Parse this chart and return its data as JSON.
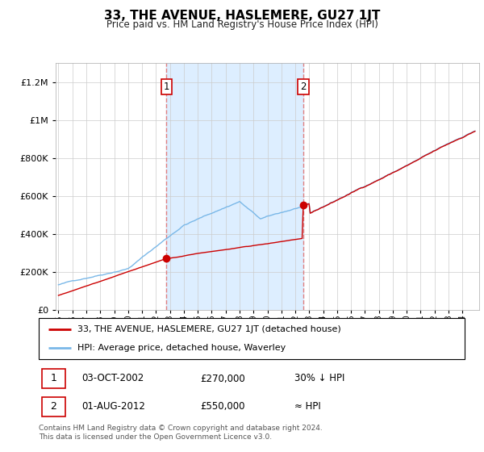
{
  "title": "33, THE AVENUE, HASLEMERE, GU27 1JT",
  "subtitle": "Price paid vs. HM Land Registry's House Price Index (HPI)",
  "ytick_values": [
    0,
    200000,
    400000,
    600000,
    800000,
    1000000,
    1200000
  ],
  "ylim": [
    0,
    1300000
  ],
  "xlim_start": 1994.8,
  "xlim_end": 2025.2,
  "hpi_color": "#7ab8e8",
  "price_color": "#cc0000",
  "shaded_color": "#ddeeff",
  "dashed_color": "#e08080",
  "t1_year": 2002.75,
  "t2_year": 2012.58,
  "t1_price": 270000,
  "t2_price": 550000,
  "legend_line1": "33, THE AVENUE, HASLEMERE, GU27 1JT (detached house)",
  "legend_line2": "HPI: Average price, detached house, Waverley",
  "table_row1": [
    "1",
    "03-OCT-2002",
    "£270,000",
    "30% ↓ HPI"
  ],
  "table_row2": [
    "2",
    "01-AUG-2012",
    "£550,000",
    "≈ HPI"
  ],
  "footer": "Contains HM Land Registry data © Crown copyright and database right 2024.\nThis data is licensed under the Open Government Licence v3.0.",
  "background_color": "#ffffff",
  "grid_color": "#cccccc",
  "xtick_start": 1995,
  "xtick_end": 2024
}
